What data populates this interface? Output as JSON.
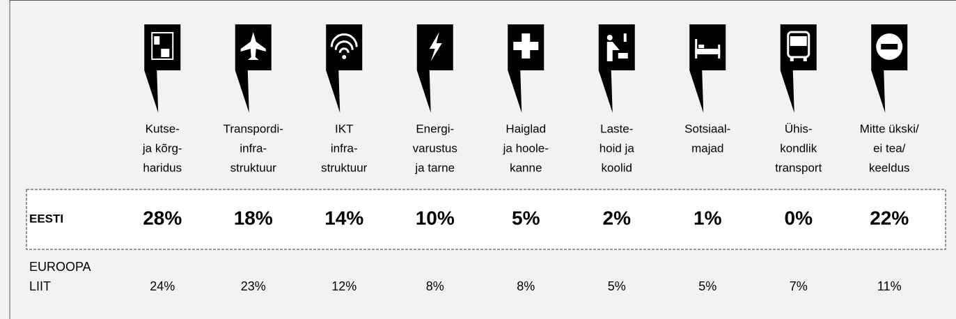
{
  "table": {
    "headers": [
      [
        "Kutse-",
        "ja kõrg-",
        "haridus"
      ],
      [
        "Transpordi-",
        "infra-",
        "struktuur"
      ],
      [
        "IKT",
        "infra-",
        "struktuur"
      ],
      [
        "Energi-",
        "varustus",
        "ja tarne"
      ],
      [
        "Haiglad",
        "ja hoole-",
        "kanne"
      ],
      [
        "Laste-",
        "hoid ja",
        "koolid"
      ],
      [
        "Sotsiaal-",
        "majad"
      ],
      [
        "Ühis-",
        "kondlik",
        "transport"
      ],
      [
        "Mitte ükski/",
        "ei tea/",
        "keeldus"
      ]
    ],
    "rows": [
      {
        "label": [
          "EESTI"
        ],
        "cells": [
          "28%",
          "18%",
          "14%",
          "10%",
          "5%",
          "2%",
          "1%",
          "0%",
          "22%"
        ]
      },
      {
        "label": [
          "EUROOPA",
          "LIIT"
        ],
        "cells": [
          "24%",
          "23%",
          "12%",
          "8%",
          "8%",
          "5%",
          "5%",
          "7%",
          "11%"
        ]
      }
    ]
  }
}
